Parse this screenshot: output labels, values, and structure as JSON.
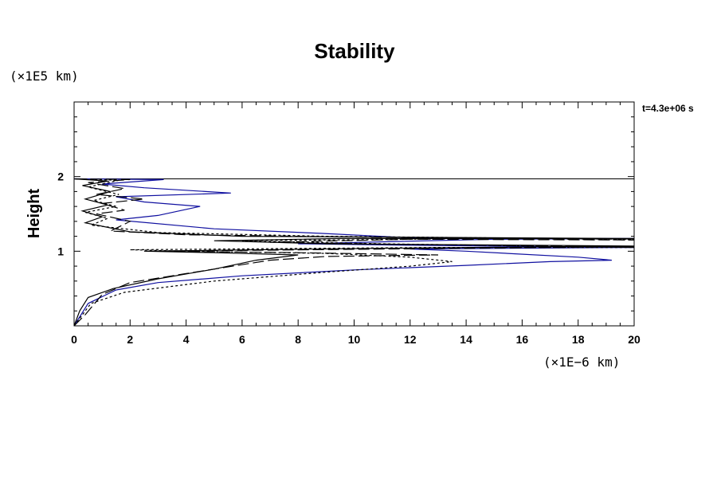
{
  "chart_data": {
    "type": "line",
    "title": "Stability",
    "ylabel": "Height",
    "xlabel": "",
    "x_unit": "(×1E−6 km)",
    "y_unit": "(×1E5 km)",
    "time_label": "t=4.3e+06 s",
    "xlim": [
      0,
      20
    ],
    "ylim": [
      0,
      3
    ],
    "x_ticks": [
      "0",
      "2",
      "4",
      "6",
      "8",
      "10",
      "12",
      "14",
      "16",
      "18",
      "20"
    ],
    "y_ticks": [
      "1",
      "2"
    ],
    "reference_line_y": 1.97,
    "colors": {
      "blue": "#1010a0",
      "black": "#000000"
    },
    "series": [
      {
        "color": "#1010a0",
        "dash": "solid",
        "points": [
          [
            0,
            0
          ],
          [
            0.5,
            0.3
          ],
          [
            1.5,
            0.48
          ],
          [
            3,
            0.58
          ],
          [
            6,
            0.67
          ],
          [
            10,
            0.75
          ],
          [
            14,
            0.81
          ],
          [
            17,
            0.86
          ],
          [
            19.2,
            0.88
          ],
          [
            18,
            0.92
          ],
          [
            14,
            1.0
          ],
          [
            12,
            1.03
          ],
          [
            20,
            1.05
          ],
          [
            12,
            1.08
          ],
          [
            8,
            1.1
          ],
          [
            15,
            1.16
          ],
          [
            20,
            1.17
          ],
          [
            12,
            1.18
          ],
          [
            8.8,
            1.24
          ],
          [
            5,
            1.3
          ],
          [
            1.5,
            1.42
          ],
          [
            3,
            1.48
          ],
          [
            4.5,
            1.6
          ],
          [
            2.5,
            1.66
          ],
          [
            1.5,
            1.73
          ],
          [
            5.6,
            1.78
          ],
          [
            2.5,
            1.85
          ],
          [
            1,
            1.9
          ],
          [
            3.2,
            1.96
          ],
          [
            0,
            1.97
          ]
        ]
      },
      {
        "color": "#000000",
        "dash": "dash",
        "points": [
          [
            0,
            0
          ],
          [
            0.4,
            0.15
          ],
          [
            1,
            0.42
          ],
          [
            2,
            0.58
          ],
          [
            4,
            0.7
          ],
          [
            6,
            0.82
          ],
          [
            7,
            0.88
          ],
          [
            9,
            0.93
          ],
          [
            13,
            0.95
          ],
          [
            8,
            0.98
          ],
          [
            3,
            1.0
          ],
          [
            14,
            1.04
          ],
          [
            20,
            1.06
          ],
          [
            12,
            1.09
          ],
          [
            7,
            1.12
          ],
          [
            12,
            1.16
          ],
          [
            20,
            1.15
          ],
          [
            10,
            1.19
          ],
          [
            4,
            1.22
          ],
          [
            1.3,
            1.27
          ],
          [
            2,
            1.4
          ],
          [
            0.8,
            1.5
          ],
          [
            1.8,
            1.55
          ],
          [
            1,
            1.64
          ],
          [
            2.5,
            1.7
          ],
          [
            0.8,
            1.76
          ],
          [
            1.8,
            1.84
          ],
          [
            0.5,
            1.92
          ],
          [
            2,
            1.96
          ],
          [
            0,
            1.97
          ]
        ]
      },
      {
        "color": "#000000",
        "dash": "dot",
        "points": [
          [
            0,
            0
          ],
          [
            0.6,
            0.3
          ],
          [
            1.8,
            0.45
          ],
          [
            5,
            0.6
          ],
          [
            9,
            0.72
          ],
          [
            12,
            0.8
          ],
          [
            13.5,
            0.86
          ],
          [
            12,
            0.92
          ],
          [
            9,
            0.97
          ],
          [
            4,
            1.0
          ],
          [
            2,
            1.02
          ],
          [
            13,
            1.05
          ],
          [
            20,
            1.05
          ],
          [
            11,
            1.1
          ],
          [
            6,
            1.14
          ],
          [
            15,
            1.17
          ],
          [
            20,
            1.16
          ],
          [
            9,
            1.2
          ],
          [
            3,
            1.25
          ],
          [
            0.6,
            1.35
          ],
          [
            1.2,
            1.44
          ],
          [
            0.4,
            1.52
          ],
          [
            1.5,
            1.6
          ],
          [
            0.7,
            1.68
          ],
          [
            1.6,
            1.76
          ],
          [
            0.5,
            1.86
          ],
          [
            1.6,
            1.95
          ],
          [
            0,
            1.97
          ]
        ]
      },
      {
        "color": "#000000",
        "dash": "solid",
        "points": [
          [
            0,
            0
          ],
          [
            0.2,
            0.2
          ],
          [
            0.5,
            0.38
          ],
          [
            1.4,
            0.5
          ],
          [
            3,
            0.63
          ],
          [
            5,
            0.76
          ],
          [
            6.5,
            0.88
          ],
          [
            8,
            0.95
          ],
          [
            5,
            0.98
          ],
          [
            2.5,
            1.0
          ],
          [
            11,
            1.04
          ],
          [
            20,
            1.07
          ],
          [
            9,
            1.1
          ],
          [
            5,
            1.14
          ],
          [
            9.5,
            1.17
          ],
          [
            20,
            1.17
          ],
          [
            6,
            1.2
          ],
          [
            2,
            1.26
          ],
          [
            0.4,
            1.38
          ],
          [
            1,
            1.46
          ],
          [
            0.3,
            1.54
          ],
          [
            1.2,
            1.62
          ],
          [
            0.4,
            1.7
          ],
          [
            1.3,
            1.8
          ],
          [
            0.3,
            1.88
          ],
          [
            1.2,
            1.94
          ],
          [
            0,
            1.97
          ]
        ]
      }
    ]
  }
}
